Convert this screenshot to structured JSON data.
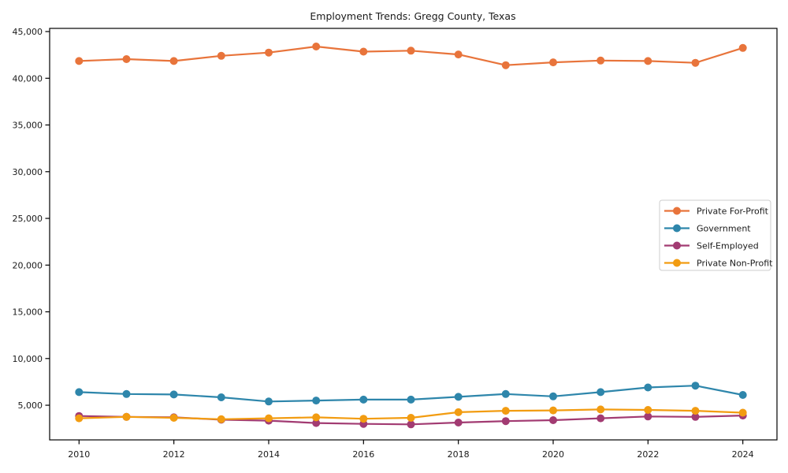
{
  "figure": {
    "background": "#ffffff",
    "axes_color": "#000000",
    "legend_border_color": "#cccccc",
    "legend_background": "#ffffff"
  },
  "chart_data": {
    "type": "line",
    "title": "Employment Trends: Gregg County, Texas",
    "xlabel": "",
    "ylabel": "",
    "grid": false,
    "legend_position": "center-right",
    "x": [
      2010,
      2011,
      2012,
      2013,
      2014,
      2015,
      2016,
      2017,
      2018,
      2019,
      2020,
      2021,
      2022,
      2023,
      2024
    ],
    "xticks": [
      2010,
      2012,
      2014,
      2016,
      2018,
      2020,
      2022,
      2024
    ],
    "yticks": [
      5000,
      10000,
      15000,
      20000,
      25000,
      30000,
      35000,
      40000,
      45000
    ],
    "ytick_labels": [
      "5,000",
      "10,000",
      "15,000",
      "20,000",
      "25,000",
      "30,000",
      "35,000",
      "40,000",
      "45,000"
    ],
    "xlim": [
      2009.38,
      2024.72
    ],
    "ylim": [
      1290,
      45340
    ],
    "series": [
      {
        "name": "Private For-Profit",
        "color": "#E8743B",
        "values": [
          41850,
          42050,
          41850,
          42400,
          42750,
          43400,
          42850,
          42950,
          42550,
          41400,
          41700,
          41900,
          41850,
          41650,
          43250
        ]
      },
      {
        "name": "Government",
        "color": "#2E86AB",
        "values": [
          6400,
          6200,
          6150,
          5850,
          5400,
          5500,
          5600,
          5600,
          5900,
          6200,
          5950,
          6400,
          6900,
          7100,
          6100
        ]
      },
      {
        "name": "Self-Employed",
        "color": "#A23B72",
        "values": [
          3850,
          3750,
          3700,
          3450,
          3350,
          3100,
          3000,
          2950,
          3150,
          3300,
          3400,
          3600,
          3800,
          3750,
          3900
        ]
      },
      {
        "name": "Private Non-Profit",
        "color": "#F29C11",
        "values": [
          3600,
          3750,
          3650,
          3500,
          3600,
          3700,
          3550,
          3650,
          4250,
          4400,
          4450,
          4550,
          4500,
          4400,
          4200
        ]
      }
    ]
  }
}
